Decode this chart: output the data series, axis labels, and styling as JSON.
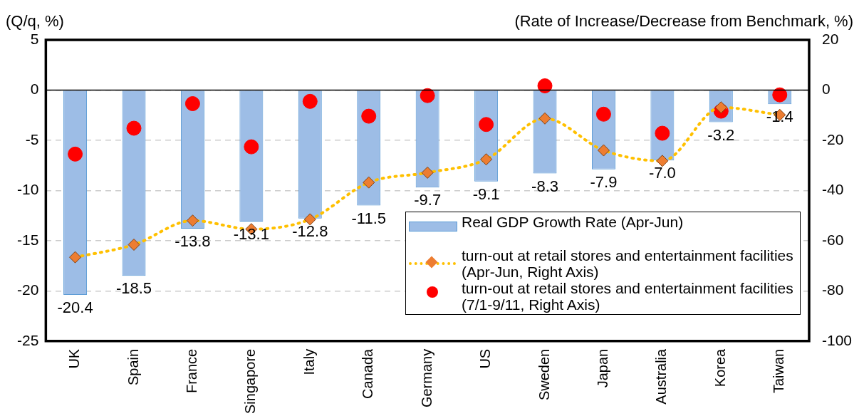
{
  "chart_data": {
    "type": "bar",
    "ylabel": "(Q/q, %)",
    "y2label": "(Rate of Increase/Decrease from Benchmark, %)",
    "categories": [
      "UK",
      "Spain",
      "France",
      "Singapore",
      "Italy",
      "Canada",
      "Germany",
      "US",
      "Sweden",
      "Japan",
      "Australia",
      "Korea",
      "Taiwan"
    ],
    "series": [
      {
        "name": "Real GDP Growth Rate (Apr-Jun)",
        "color": "#9dbde6",
        "values": [
          -20.4,
          -18.5,
          -13.8,
          -13.1,
          -12.8,
          -11.5,
          -9.7,
          -9.1,
          -8.3,
          -7.9,
          -7.0,
          -3.2,
          -1.4
        ],
        "value_labels": [
          "-20.4",
          "-18.5",
          "-13.8",
          "-13.1",
          "-12.8",
          "-11.5",
          "-9.7",
          "-9.1",
          "-8.3",
          "-7.9",
          "-7.0",
          "-3.2",
          "-1.4"
        ]
      },
      {
        "name": "turn-out at retail stores and entertainment facilities (Apr-Jun, Right Axis)",
        "type": "line",
        "axis": "y2",
        "color": "#ffc000",
        "marker": "diamond",
        "line_style": "dotted",
        "values": [
          -66.6,
          -61.6,
          -52,
          -55.4,
          -51.5,
          -36.8,
          -32.9,
          -27.6,
          -11.3,
          -24,
          -28.2,
          -6.9,
          -9.9
        ]
      },
      {
        "name": "turn-out at retail stores and entertainment facilities (7/1-9/11, Right Axis)",
        "type": "scatter",
        "axis": "y2",
        "color": "#ff0000",
        "marker": "circle",
        "values": [
          -25.5,
          -15.2,
          -5.4,
          -22.6,
          -4.5,
          -10.4,
          -2.2,
          -13.7,
          1.7,
          -9.6,
          -17.2,
          -8.4,
          -1.9
        ]
      }
    ],
    "ylim": [
      -25,
      5
    ],
    "yticks": [
      -25,
      -20,
      -15,
      -10,
      -5,
      0,
      5
    ],
    "y2lim": [
      -100,
      20
    ],
    "y2ticks": [
      -100,
      -80,
      -60,
      -40,
      -20,
      0,
      20
    ],
    "ref_lines": [
      {
        "axis": "y",
        "value": 0,
        "color": "#000000"
      }
    ],
    "grid": "y",
    "legend": "bottom right"
  }
}
